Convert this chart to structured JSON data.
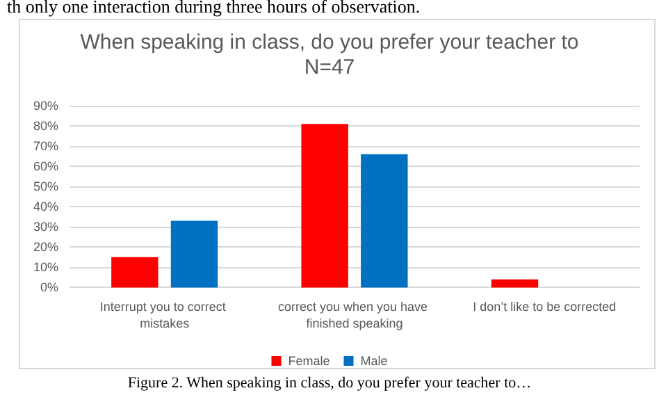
{
  "chart_data": {
    "type": "bar",
    "title": "When speaking in class, do you prefer your teacher to",
    "subtitle": "N=47",
    "categories": [
      "Interrupt you to correct mistakes",
      "correct you when you have finished speaking",
      "I don’t like to be corrected"
    ],
    "series": [
      {
        "name": "Female",
        "color": "#ff0000",
        "values": [
          15,
          81,
          4
        ]
      },
      {
        "name": "Male",
        "color": "#0070c0",
        "values": [
          33,
          66,
          0
        ]
      }
    ],
    "ylim": [
      0,
      90
    ],
    "yticks": [
      {
        "value": 0,
        "label": "0%"
      },
      {
        "value": 10,
        "label": "10%"
      },
      {
        "value": 20,
        "label": "20%"
      },
      {
        "value": 30,
        "label": "30%"
      },
      {
        "value": 40,
        "label": "40%"
      },
      {
        "value": 50,
        "label": "50%"
      },
      {
        "value": 60,
        "label": "60%"
      },
      {
        "value": 70,
        "label": "70%"
      },
      {
        "value": 80,
        "label": "80%"
      },
      {
        "value": 90,
        "label": "90%"
      }
    ],
    "grid": "y",
    "legend": "bottom",
    "annotations": [
      "th only one interaction during three hours of observation.",
      "Figure 2. When speaking in class, do you prefer your teacher to…"
    ]
  }
}
